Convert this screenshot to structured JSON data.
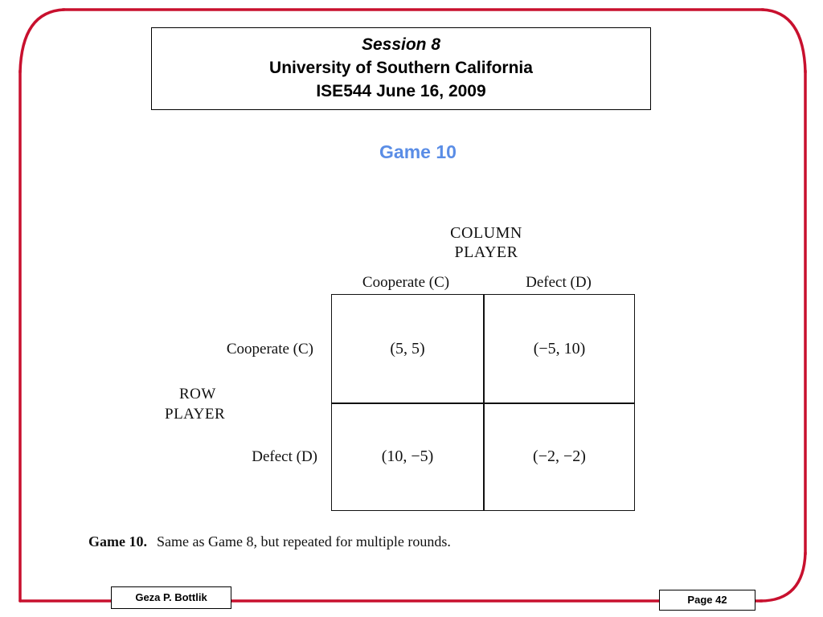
{
  "header": {
    "session": "Session 8",
    "university": "University of Southern California",
    "course": "ISE544 June 16, 2009"
  },
  "title": "Game 10",
  "matrix": {
    "column_player": [
      "COLUMN",
      "PLAYER"
    ],
    "row_player": [
      "ROW",
      "PLAYER"
    ],
    "column_headers": [
      "Cooperate (C)",
      "Defect (D)"
    ],
    "row_headers": [
      "Cooperate (C)",
      "Defect (D)"
    ],
    "cells": [
      [
        "(5, 5)",
        "(−5, 10)"
      ],
      [
        "(10, −5)",
        "(−2, −2)"
      ]
    ]
  },
  "caption": {
    "label": "Game 10.",
    "text": "Same as Game 8, but repeated for multiple rounds."
  },
  "footer": {
    "author": "Geza P. Bottlik",
    "page": "Page 42"
  },
  "colors": {
    "frame": "#c8102e",
    "title": "#5a8de6"
  }
}
